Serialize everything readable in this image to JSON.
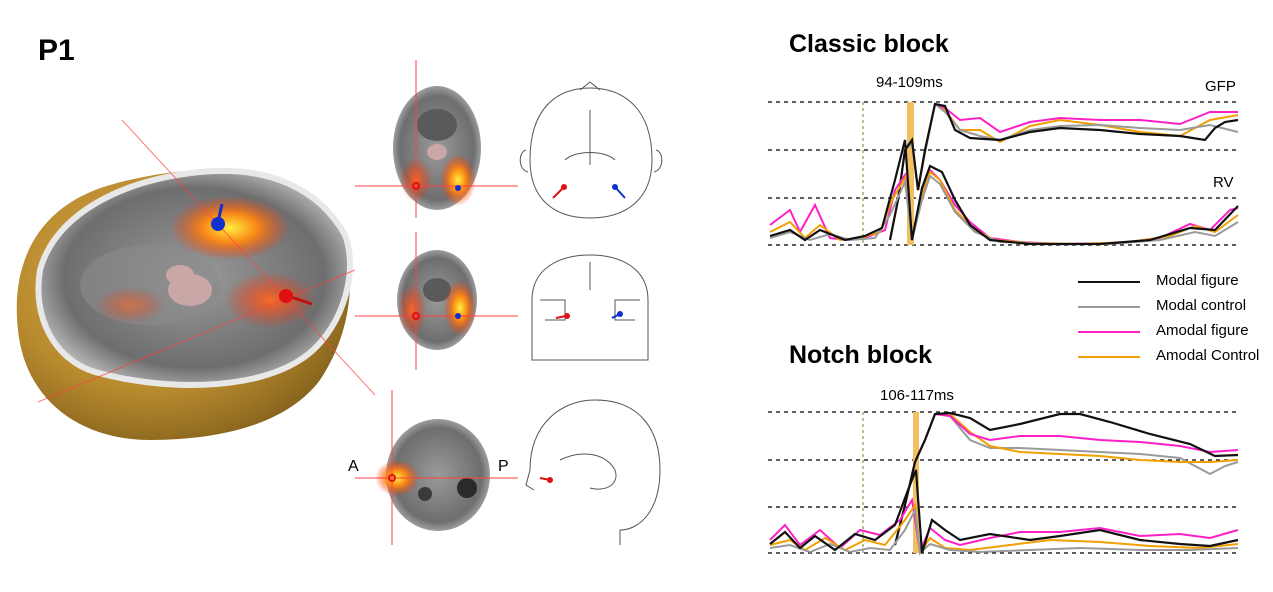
{
  "panel": {
    "label": "P1"
  },
  "orientation": {
    "anterior": "A",
    "posterior": "P"
  },
  "colors": {
    "modal_figure": "#111111",
    "modal_control": "#9a9a9a",
    "amodal_figure": "#ff1fc8",
    "amodal_control": "#f0a000",
    "window_highlight": "#f2c060",
    "dipole_left": "#e01010",
    "dipole_right": "#1030d0"
  },
  "classic": {
    "title": "Classic block",
    "window": "94-109ms",
    "gfp_label": "GFP",
    "rv_label": "RV"
  },
  "notch": {
    "title": "Notch block",
    "window": "106-117ms"
  },
  "legend": [
    {
      "label": "Modal figure",
      "color": "#111111"
    },
    {
      "label": "Modal control",
      "color": "#9a9a9a"
    },
    {
      "label": "Amodal figure",
      "color": "#ff1fc8"
    },
    {
      "label": "Amodal Control",
      "color": "#f0a000"
    }
  ]
}
